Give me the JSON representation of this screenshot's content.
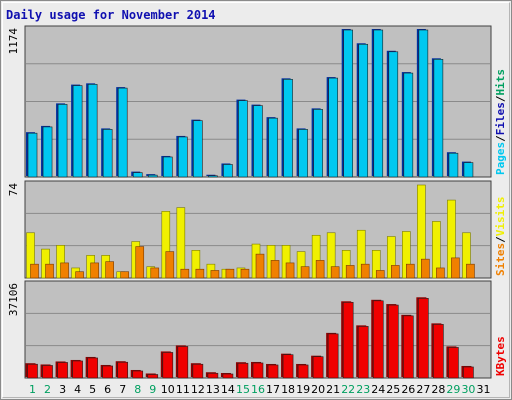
{
  "title": "Daily usage for November 2014",
  "chart_data": [
    {
      "type": "bar",
      "panel": "hits-files-pages",
      "ytick": "1174",
      "ymax": 1174,
      "legend": [
        "Pages",
        "Files",
        "Hits"
      ],
      "legend_separator": "/",
      "legend_colors": [
        "#00c8f0",
        "#1010b0",
        "#00a060"
      ],
      "categories": [
        "1",
        "2",
        "3",
        "4",
        "5",
        "6",
        "7",
        "8",
        "9",
        "10",
        "11",
        "12",
        "13",
        "14",
        "15",
        "16",
        "17",
        "18",
        "19",
        "20",
        "21",
        "22",
        "23",
        "24",
        "25",
        "26",
        "27",
        "28",
        "29",
        "30",
        "31"
      ],
      "series": [
        {
          "name": "Pages",
          "color": "#00c8f0",
          "values": [
            350,
            400,
            580,
            730,
            740,
            380,
            710,
            35,
            15,
            160,
            320,
            450,
            10,
            100,
            610,
            570,
            470,
            780,
            380,
            540,
            790,
            1174,
            1060,
            1174,
            1000,
            830,
            1174,
            940,
            190,
            115,
            0
          ]
        }
      ]
    },
    {
      "type": "bar",
      "panel": "visits-sites",
      "ytick": "74",
      "ymax": 74,
      "legend": [
        "Sites",
        "Visits"
      ],
      "legend_separator": "/",
      "legend_colors": [
        "#f08000",
        "#f0f000"
      ],
      "categories": [
        "1",
        "2",
        "3",
        "4",
        "5",
        "6",
        "7",
        "8",
        "9",
        "10",
        "11",
        "12",
        "13",
        "14",
        "15",
        "16",
        "17",
        "18",
        "19",
        "20",
        "21",
        "22",
        "23",
        "24",
        "25",
        "26",
        "27",
        "28",
        "29",
        "30",
        "31"
      ],
      "series": [
        {
          "name": "Visits",
          "color": "#f0f000",
          "values": [
            36,
            23,
            26,
            8,
            18,
            18,
            5,
            29,
            9,
            53,
            56,
            22,
            11,
            7,
            8,
            27,
            26,
            26,
            21,
            34,
            36,
            22,
            38,
            22,
            33,
            37,
            74,
            45,
            62,
            36,
            0
          ]
        },
        {
          "name": "Sites",
          "color": "#f08000",
          "values": [
            11,
            11,
            12,
            5,
            12,
            13,
            5,
            25,
            8,
            21,
            7,
            7,
            6,
            7,
            7,
            19,
            14,
            12,
            9,
            14,
            9,
            10,
            11,
            6,
            10,
            11,
            15,
            8,
            16,
            11,
            0
          ]
        }
      ]
    },
    {
      "type": "bar",
      "panel": "kbytes",
      "ytick": "37106",
      "ymax": 37106,
      "legend": [
        "KBytes"
      ],
      "legend_colors": [
        "#f00000"
      ],
      "categories": [
        "1",
        "2",
        "3",
        "4",
        "5",
        "6",
        "7",
        "8",
        "9",
        "10",
        "11",
        "12",
        "13",
        "14",
        "15",
        "16",
        "17",
        "18",
        "19",
        "20",
        "21",
        "22",
        "23",
        "24",
        "25",
        "26",
        "27",
        "28",
        "29",
        "30",
        "31"
      ],
      "series": [
        {
          "name": "KBytes",
          "color": "#f00000",
          "values": [
            5500,
            5000,
            6200,
            6800,
            8000,
            4800,
            6300,
            2800,
            1400,
            10200,
            12600,
            5500,
            1900,
            1600,
            5900,
            6000,
            5200,
            9300,
            5200,
            8500,
            17600,
            30200,
            20600,
            30800,
            29100,
            24800,
            31800,
            21400,
            12200,
            4400,
            0
          ]
        }
      ]
    }
  ],
  "weekend_days": [
    "1",
    "2",
    "8",
    "9",
    "15",
    "16",
    "22",
    "23",
    "29",
    "30"
  ],
  "colors": {
    "weekend": "#00a060",
    "weekday": "#000000",
    "plot_bg": "#c0c0c0",
    "grid": "#8a8a8a"
  }
}
